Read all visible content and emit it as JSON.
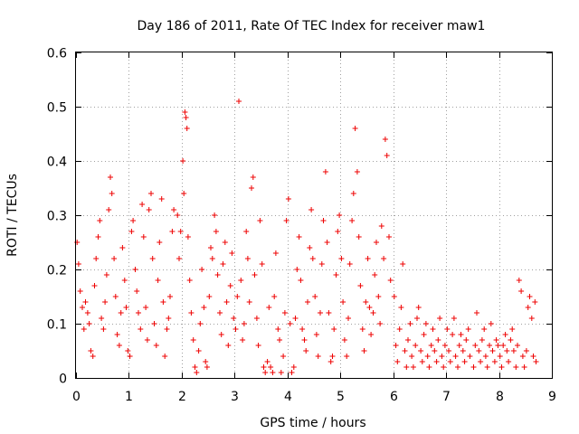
{
  "chart_data": {
    "type": "scatter",
    "title": "Day 186 of 2011, Rate Of TEC Index for receiver maw1",
    "xlabel": "GPS time / hours",
    "ylabel": "ROTI / TECUs",
    "xlim": [
      0,
      9
    ],
    "ylim": [
      0,
      0.6
    ],
    "xticks": [
      "0",
      "1",
      "2",
      "3",
      "4",
      "5",
      "6",
      "7",
      "8",
      "9"
    ],
    "yticks": [
      "0",
      "0.1",
      "0.2",
      "0.3",
      "0.4",
      "0.5",
      "0.6"
    ],
    "grid": true,
    "marker": "+",
    "series": [
      {
        "name": "maw1",
        "color": "#ee0000",
        "points": [
          [
            0.02,
            0.25
          ],
          [
            0.05,
            0.21
          ],
          [
            0.08,
            0.16
          ],
          [
            0.12,
            0.13
          ],
          [
            0.15,
            0.09
          ],
          [
            0.18,
            0.14
          ],
          [
            0.22,
            0.12
          ],
          [
            0.25,
            0.1
          ],
          [
            0.28,
            0.05
          ],
          [
            0.32,
            0.04
          ],
          [
            0.35,
            0.17
          ],
          [
            0.38,
            0.22
          ],
          [
            0.42,
            0.26
          ],
          [
            0.45,
            0.29
          ],
          [
            0.48,
            0.11
          ],
          [
            0.52,
            0.09
          ],
          [
            0.55,
            0.14
          ],
          [
            0.58,
            0.19
          ],
          [
            0.62,
            0.31
          ],
          [
            0.65,
            0.37
          ],
          [
            0.68,
            0.34
          ],
          [
            0.72,
            0.22
          ],
          [
            0.75,
            0.15
          ],
          [
            0.78,
            0.08
          ],
          [
            0.82,
            0.06
          ],
          [
            0.85,
            0.12
          ],
          [
            0.88,
            0.24
          ],
          [
            0.92,
            0.18
          ],
          [
            0.95,
            0.13
          ],
          [
            0.98,
            0.05
          ],
          [
            1.02,
            0.04
          ],
          [
            1.05,
            0.27
          ],
          [
            1.08,
            0.29
          ],
          [
            1.12,
            0.2
          ],
          [
            1.15,
            0.16
          ],
          [
            1.18,
            0.12
          ],
          [
            1.22,
            0.09
          ],
          [
            1.25,
            0.32
          ],
          [
            1.28,
            0.26
          ],
          [
            1.32,
            0.13
          ],
          [
            1.35,
            0.07
          ],
          [
            1.38,
            0.31
          ],
          [
            1.42,
            0.34
          ],
          [
            1.45,
            0.22
          ],
          [
            1.48,
            0.1
          ],
          [
            1.52,
            0.06
          ],
          [
            1.55,
            0.18
          ],
          [
            1.58,
            0.25
          ],
          [
            1.62,
            0.33
          ],
          [
            1.65,
            0.14
          ],
          [
            1.68,
            0.04
          ],
          [
            1.72,
            0.09
          ],
          [
            1.75,
            0.11
          ],
          [
            1.78,
            0.15
          ],
          [
            1.82,
            0.27
          ],
          [
            1.85,
            0.31
          ],
          [
            1.92,
            0.3
          ],
          [
            1.95,
            0.22
          ],
          [
            1.98,
            0.27
          ],
          [
            2.02,
            0.4
          ],
          [
            2.04,
            0.34
          ],
          [
            2.06,
            0.49
          ],
          [
            2.08,
            0.48
          ],
          [
            2.1,
            0.46
          ],
          [
            2.12,
            0.26
          ],
          [
            2.15,
            0.18
          ],
          [
            2.18,
            0.12
          ],
          [
            2.22,
            0.07
          ],
          [
            2.25,
            0.02
          ],
          [
            2.28,
            0.01
          ],
          [
            2.32,
            0.05
          ],
          [
            2.35,
            0.1
          ],
          [
            2.38,
            0.2
          ],
          [
            2.42,
            0.13
          ],
          [
            2.45,
            0.03
          ],
          [
            2.48,
            0.02
          ],
          [
            2.52,
            0.15
          ],
          [
            2.55,
            0.24
          ],
          [
            2.58,
            0.22
          ],
          [
            2.62,
            0.3
          ],
          [
            2.65,
            0.27
          ],
          [
            2.68,
            0.19
          ],
          [
            2.72,
            0.12
          ],
          [
            2.75,
            0.08
          ],
          [
            2.78,
            0.21
          ],
          [
            2.82,
            0.25
          ],
          [
            2.85,
            0.14
          ],
          [
            2.88,
            0.06
          ],
          [
            2.92,
            0.17
          ],
          [
            2.95,
            0.23
          ],
          [
            2.98,
            0.11
          ],
          [
            3.02,
            0.09
          ],
          [
            3.05,
            0.15
          ],
          [
            3.08,
            0.51
          ],
          [
            3.12,
            0.18
          ],
          [
            3.15,
            0.07
          ],
          [
            3.18,
            0.1
          ],
          [
            3.22,
            0.27
          ],
          [
            3.25,
            0.22
          ],
          [
            3.28,
            0.14
          ],
          [
            3.32,
            0.35
          ],
          [
            3.35,
            0.37
          ],
          [
            3.38,
            0.19
          ],
          [
            3.42,
            0.11
          ],
          [
            3.45,
            0.06
          ],
          [
            3.48,
            0.29
          ],
          [
            3.52,
            0.21
          ],
          [
            3.55,
            0.02
          ],
          [
            3.58,
            0.01
          ],
          [
            3.62,
            0.03
          ],
          [
            3.65,
            0.13
          ],
          [
            3.68,
            0.02
          ],
          [
            3.72,
            0.01
          ],
          [
            3.75,
            0.15
          ],
          [
            3.78,
            0.23
          ],
          [
            3.82,
            0.09
          ],
          [
            3.85,
            0.07
          ],
          [
            3.88,
            0.01
          ],
          [
            3.92,
            0.04
          ],
          [
            3.95,
            0.12
          ],
          [
            3.98,
            0.29
          ],
          [
            4.02,
            0.33
          ],
          [
            4.05,
            0.1
          ],
          [
            4.08,
            0.01
          ],
          [
            4.12,
            0.02
          ],
          [
            4.15,
            0.11
          ],
          [
            4.18,
            0.2
          ],
          [
            4.22,
            0.26
          ],
          [
            4.25,
            0.18
          ],
          [
            4.28,
            0.09
          ],
          [
            4.32,
            0.07
          ],
          [
            4.35,
            0.05
          ],
          [
            4.38,
            0.14
          ],
          [
            4.42,
            0.24
          ],
          [
            4.45,
            0.31
          ],
          [
            4.48,
            0.22
          ],
          [
            4.52,
            0.15
          ],
          [
            4.55,
            0.08
          ],
          [
            4.58,
            0.04
          ],
          [
            4.62,
            0.12
          ],
          [
            4.65,
            0.21
          ],
          [
            4.68,
            0.29
          ],
          [
            4.72,
            0.38
          ],
          [
            4.75,
            0.25
          ],
          [
            4.78,
            0.12
          ],
          [
            4.82,
            0.03
          ],
          [
            4.85,
            0.04
          ],
          [
            4.88,
            0.09
          ],
          [
            4.92,
            0.19
          ],
          [
            4.95,
            0.27
          ],
          [
            4.98,
            0.3
          ],
          [
            5.02,
            0.22
          ],
          [
            5.05,
            0.14
          ],
          [
            5.08,
            0.07
          ],
          [
            5.12,
            0.04
          ],
          [
            5.15,
            0.11
          ],
          [
            5.18,
            0.21
          ],
          [
            5.22,
            0.29
          ],
          [
            5.25,
            0.34
          ],
          [
            5.28,
            0.46
          ],
          [
            5.32,
            0.38
          ],
          [
            5.35,
            0.26
          ],
          [
            5.38,
            0.17
          ],
          [
            5.42,
            0.09
          ],
          [
            5.45,
            0.05
          ],
          [
            5.48,
            0.14
          ],
          [
            5.52,
            0.22
          ],
          [
            5.55,
            0.13
          ],
          [
            5.58,
            0.08
          ],
          [
            5.62,
            0.12
          ],
          [
            5.65,
            0.19
          ],
          [
            5.68,
            0.25
          ],
          [
            5.72,
            0.15
          ],
          [
            5.75,
            0.1
          ],
          [
            5.78,
            0.28
          ],
          [
            5.82,
            0.22
          ],
          [
            5.85,
            0.44
          ],
          [
            5.88,
            0.41
          ],
          [
            5.92,
            0.26
          ],
          [
            5.95,
            0.18
          ],
          [
            6.02,
            0.15
          ],
          [
            6.05,
            0.06
          ],
          [
            6.08,
            0.03
          ],
          [
            6.12,
            0.09
          ],
          [
            6.15,
            0.13
          ],
          [
            6.18,
            0.21
          ],
          [
            6.22,
            0.05
          ],
          [
            6.25,
            0.02
          ],
          [
            6.28,
            0.07
          ],
          [
            6.32,
            0.1
          ],
          [
            6.35,
            0.04
          ],
          [
            6.38,
            0.02
          ],
          [
            6.42,
            0.06
          ],
          [
            6.45,
            0.11
          ],
          [
            6.48,
            0.13
          ],
          [
            6.52,
            0.05
          ],
          [
            6.55,
            0.03
          ],
          [
            6.58,
            0.08
          ],
          [
            6.62,
            0.1
          ],
          [
            6.65,
            0.04
          ],
          [
            6.68,
            0.02
          ],
          [
            6.72,
            0.06
          ],
          [
            6.75,
            0.09
          ],
          [
            6.78,
            0.05
          ],
          [
            6.82,
            0.03
          ],
          [
            6.85,
            0.07
          ],
          [
            6.88,
            0.11
          ],
          [
            6.92,
            0.04
          ],
          [
            6.95,
            0.02
          ],
          [
            6.98,
            0.06
          ],
          [
            7.02,
            0.09
          ],
          [
            7.05,
            0.05
          ],
          [
            7.08,
            0.03
          ],
          [
            7.12,
            0.08
          ],
          [
            7.15,
            0.11
          ],
          [
            7.18,
            0.04
          ],
          [
            7.22,
            0.02
          ],
          [
            7.25,
            0.06
          ],
          [
            7.28,
            0.08
          ],
          [
            7.32,
            0.05
          ],
          [
            7.35,
            0.03
          ],
          [
            7.38,
            0.07
          ],
          [
            7.42,
            0.09
          ],
          [
            7.45,
            0.04
          ],
          [
            7.52,
            0.02
          ],
          [
            7.55,
            0.06
          ],
          [
            7.58,
            0.12
          ],
          [
            7.62,
            0.05
          ],
          [
            7.65,
            0.03
          ],
          [
            7.68,
            0.07
          ],
          [
            7.72,
            0.09
          ],
          [
            7.75,
            0.04
          ],
          [
            7.78,
            0.02
          ],
          [
            7.82,
            0.06
          ],
          [
            7.85,
            0.1
          ],
          [
            7.88,
            0.05
          ],
          [
            7.92,
            0.03
          ],
          [
            7.95,
            0.07
          ],
          [
            7.98,
            0.06
          ],
          [
            8.02,
            0.04
          ],
          [
            8.05,
            0.02
          ],
          [
            8.08,
            0.06
          ],
          [
            8.12,
            0.08
          ],
          [
            8.15,
            0.05
          ],
          [
            8.18,
            0.03
          ],
          [
            8.22,
            0.07
          ],
          [
            8.25,
            0.09
          ],
          [
            8.28,
            0.05
          ],
          [
            8.32,
            0.02
          ],
          [
            8.35,
            0.06
          ],
          [
            8.38,
            0.18
          ],
          [
            8.42,
            0.16
          ],
          [
            8.45,
            0.04
          ],
          [
            8.48,
            0.02
          ],
          [
            8.52,
            0.05
          ],
          [
            8.55,
            0.13
          ],
          [
            8.58,
            0.15
          ],
          [
            8.62,
            0.11
          ],
          [
            8.65,
            0.04
          ],
          [
            8.68,
            0.14
          ],
          [
            8.7,
            0.03
          ]
        ]
      }
    ]
  }
}
